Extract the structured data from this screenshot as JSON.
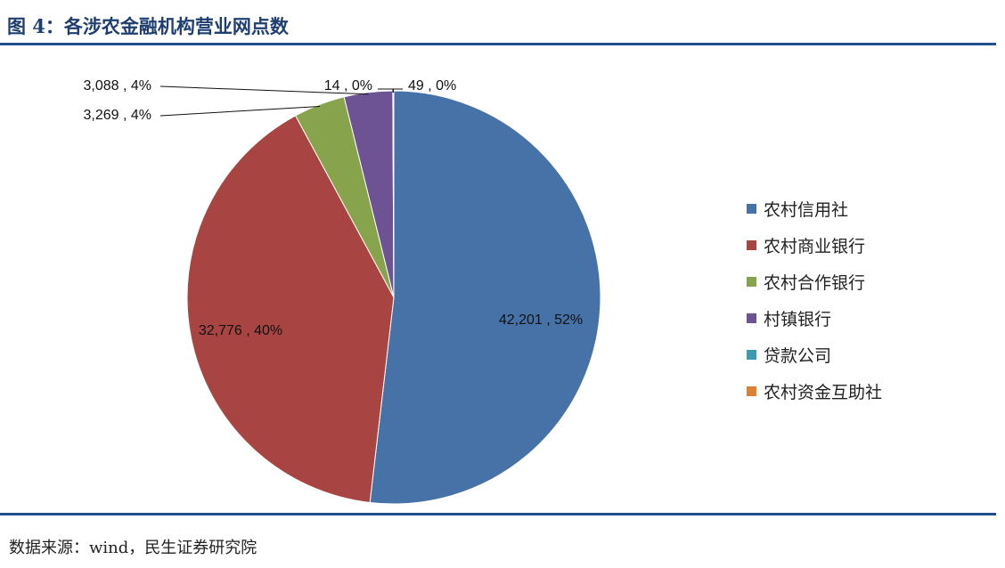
{
  "header": {
    "title": "图 4：各涉农金融机构营业网点数"
  },
  "footer": {
    "source": "数据来源：wind，民生证券研究院"
  },
  "chart_data": {
    "type": "pie",
    "title": "",
    "slices": [
      {
        "name": "农村信用社",
        "value": 42201,
        "label": "42,201 , 52%",
        "color": "#4672a8"
      },
      {
        "name": "农村商业银行",
        "value": 32776,
        "label": "32,776 , 40%",
        "color": "#a84542"
      },
      {
        "name": "农村合作银行",
        "value": 3269,
        "label": "3,269 , 4%",
        "color": "#87a34c"
      },
      {
        "name": "村镇银行",
        "value": 3088,
        "label": "3,088 , 4%",
        "color": "#6d5393"
      },
      {
        "name": "贷款公司",
        "value": 14,
        "label": "14 , 0%",
        "color": "#3d9bb0"
      },
      {
        "name": "农村资金互助社",
        "value": 49,
        "label": "49 , 0%",
        "color": "#dc8034"
      }
    ],
    "legend_position": "right"
  }
}
